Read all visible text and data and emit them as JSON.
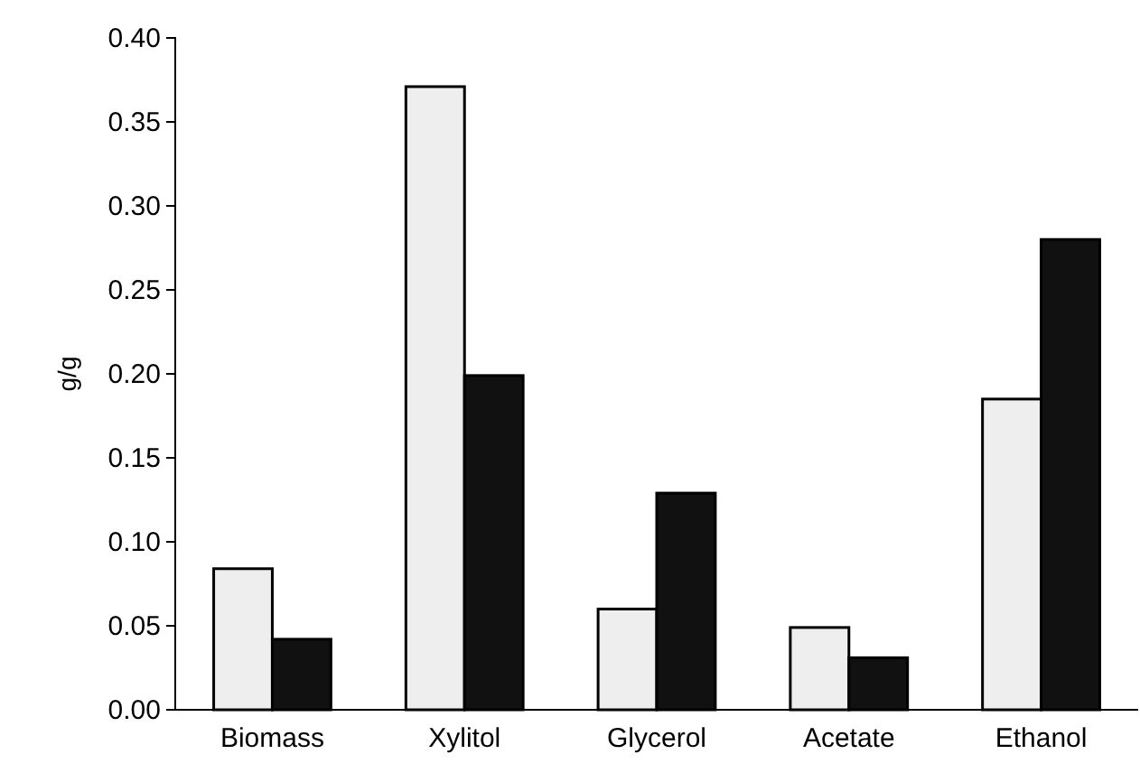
{
  "chart_data": {
    "type": "bar",
    "ylabel": "g/g",
    "categories": [
      "Biomass",
      "Xylitol",
      "Glycerol",
      "Acetate",
      "Ethanol"
    ],
    "series": [
      {
        "color": "#eeeeee",
        "values": [
          0.084,
          0.371,
          0.06,
          0.049,
          0.185
        ]
      },
      {
        "color": "#111111",
        "values": [
          0.042,
          0.199,
          0.129,
          0.031,
          0.28
        ]
      }
    ],
    "ylim": [
      0,
      0.4
    ],
    "yticks": [
      {
        "value": 0,
        "label": "0.00"
      },
      {
        "value": 0.05,
        "label": "0.05"
      },
      {
        "value": 0.1,
        "label": "0.10"
      },
      {
        "value": 0.15,
        "label": "0.15"
      },
      {
        "value": 0.2,
        "label": "0.20"
      },
      {
        "value": 0.25,
        "label": "0.25"
      },
      {
        "value": 0.3,
        "label": "0.30"
      },
      {
        "value": 0.35,
        "label": "0.35"
      },
      {
        "value": 0.4,
        "label": "0.40"
      }
    ],
    "grid": false
  }
}
